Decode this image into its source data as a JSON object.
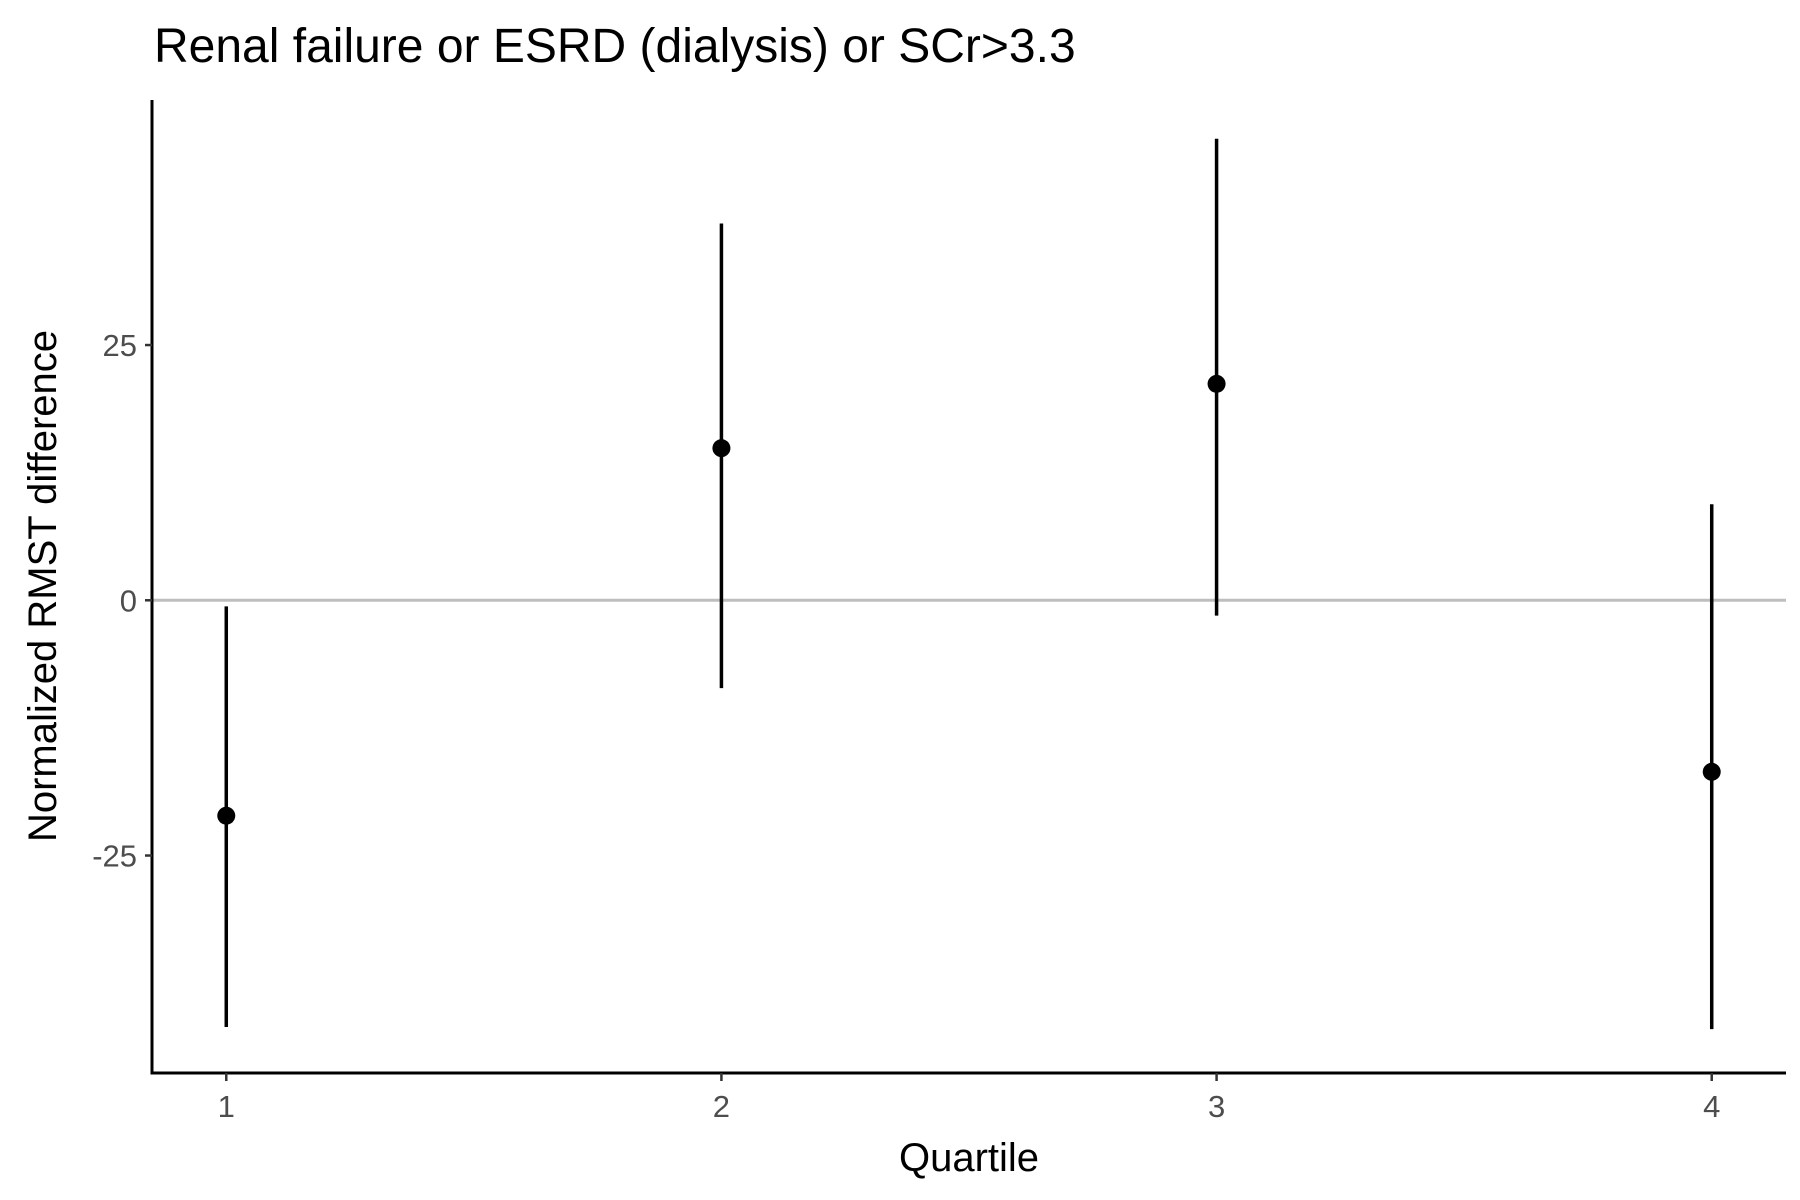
{
  "chart_data": {
    "type": "scatter",
    "subtype": "point-range",
    "title": "Renal failure or ESRD (dialysis) or SCr>3.3",
    "xlabel": "Quartile",
    "ylabel": "Normalized RMST difference",
    "x_ticks": [
      "1",
      "2",
      "3",
      "4"
    ],
    "y_ticks": [
      {
        "value": -25,
        "label": "-25"
      },
      {
        "value": 0,
        "label": "0"
      },
      {
        "value": 25,
        "label": "25"
      }
    ],
    "xlim": [
      0.85,
      4.15
    ],
    "ylim": [
      -46.3,
      49
    ],
    "reference_line": {
      "y": 0,
      "color": "#bebebe"
    },
    "grid": false,
    "legend": "none",
    "points": [
      {
        "x": 1,
        "y": -21.1,
        "lower": -41.8,
        "upper": -0.6
      },
      {
        "x": 2,
        "y": 14.9,
        "lower": -8.6,
        "upper": 36.9
      },
      {
        "x": 3,
        "y": 21.2,
        "lower": -1.5,
        "upper": 45.2
      },
      {
        "x": 4,
        "y": -16.8,
        "lower": -42.0,
        "upper": 9.4
      }
    ],
    "point_color": "#000000",
    "errorbar_color": "#000000",
    "axis_color": "#000000"
  }
}
